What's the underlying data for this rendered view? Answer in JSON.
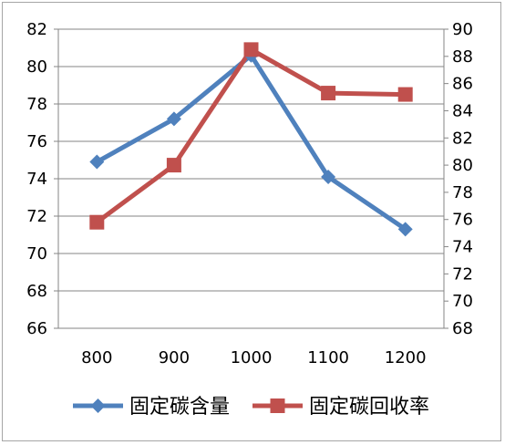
{
  "chart_data": {
    "type": "line",
    "categories": [
      "800",
      "900",
      "1000",
      "1100",
      "1200"
    ],
    "y_left": {
      "min": 66,
      "max": 82,
      "step": 2,
      "ticks": [
        "66",
        "68",
        "70",
        "72",
        "74",
        "76",
        "78",
        "80",
        "82"
      ]
    },
    "y_right": {
      "min": 68,
      "max": 90,
      "step": 2,
      "ticks": [
        "68",
        "70",
        "72",
        "74",
        "76",
        "78",
        "80",
        "82",
        "84",
        "86",
        "88",
        "90"
      ]
    },
    "grid": true,
    "legend_position": "bottom",
    "series": [
      {
        "name": "固定碳含量",
        "axis": "left",
        "color": "#4f81bd",
        "marker": "diamond",
        "values": [
          74.9,
          77.2,
          80.6,
          74.1,
          71.3
        ]
      },
      {
        "name": "固定碳回收率",
        "axis": "right",
        "color": "#c0504d",
        "marker": "square",
        "values": [
          75.8,
          80.0,
          88.5,
          85.3,
          85.2
        ]
      }
    ]
  }
}
